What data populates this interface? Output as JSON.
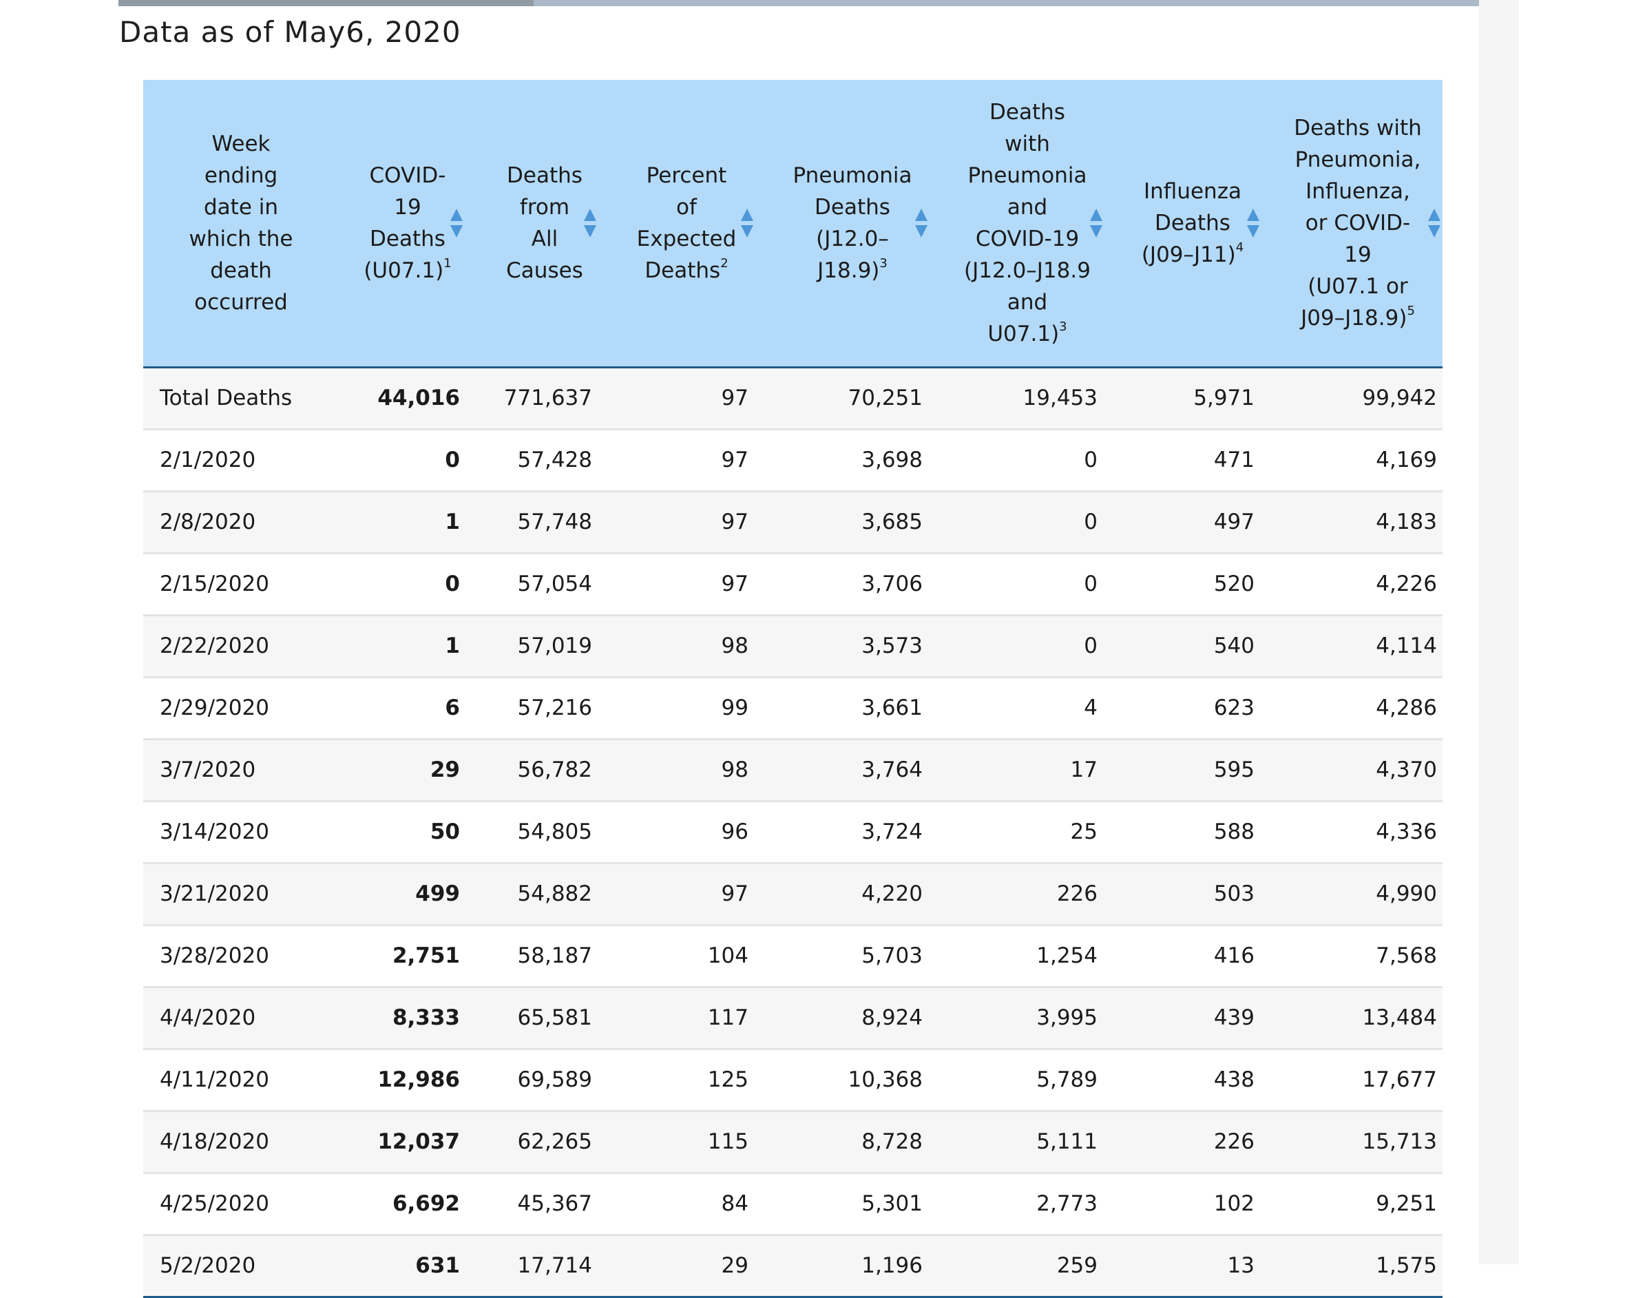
{
  "page": {
    "as_of": "Data as of May6, 2020"
  },
  "table": {
    "headers": [
      {
        "lines": [
          "Week ending",
          "date in",
          "which the",
          "death",
          "occurred"
        ],
        "sup": ""
      },
      {
        "lines": [
          "COVID-",
          "19",
          "Deaths",
          "(U07.1)"
        ],
        "sup": "1"
      },
      {
        "lines": [
          "Deaths",
          "from",
          "All",
          "Causes"
        ],
        "sup": ""
      },
      {
        "lines": [
          "Percent",
          "of",
          "Expected",
          "Deaths"
        ],
        "sup": "2"
      },
      {
        "lines": [
          "Pneumonia",
          "Deaths",
          "(J12.0–",
          "J18.9)"
        ],
        "sup": "3"
      },
      {
        "lines": [
          "Deaths",
          "with",
          "Pneumonia",
          "and",
          "COVID-19",
          "(J12.0–J18.9",
          "and",
          "U07.1)"
        ],
        "sup": "3"
      },
      {
        "lines": [
          "Influenza",
          "Deaths",
          "(J09–J11)"
        ],
        "sup": "4"
      },
      {
        "lines": [
          "Deaths with",
          "Pneumonia,",
          "Influenza,",
          "or COVID-",
          "19",
          "(U07.1 or",
          "J09–J18.9)"
        ],
        "sup": "5"
      }
    ],
    "rows": [
      [
        "Total Deaths",
        "44,016",
        "771,637",
        "97",
        "70,251",
        "19,453",
        "5,971",
        "99,942"
      ],
      [
        "2/1/2020",
        "0",
        "57,428",
        "97",
        "3,698",
        "0",
        "471",
        "4,169"
      ],
      [
        "2/8/2020",
        "1",
        "57,748",
        "97",
        "3,685",
        "0",
        "497",
        "4,183"
      ],
      [
        "2/15/2020",
        "0",
        "57,054",
        "97",
        "3,706",
        "0",
        "520",
        "4,226"
      ],
      [
        "2/22/2020",
        "1",
        "57,019",
        "98",
        "3,573",
        "0",
        "540",
        "4,114"
      ],
      [
        "2/29/2020",
        "6",
        "57,216",
        "99",
        "3,661",
        "4",
        "623",
        "4,286"
      ],
      [
        "3/7/2020",
        "29",
        "56,782",
        "98",
        "3,764",
        "17",
        "595",
        "4,370"
      ],
      [
        "3/14/2020",
        "50",
        "54,805",
        "96",
        "3,724",
        "25",
        "588",
        "4,336"
      ],
      [
        "3/21/2020",
        "499",
        "54,882",
        "97",
        "4,220",
        "226",
        "503",
        "4,990"
      ],
      [
        "3/28/2020",
        "2,751",
        "58,187",
        "104",
        "5,703",
        "1,254",
        "416",
        "7,568"
      ],
      [
        "4/4/2020",
        "8,333",
        "65,581",
        "117",
        "8,924",
        "3,995",
        "439",
        "13,484"
      ],
      [
        "4/11/2020",
        "12,986",
        "69,589",
        "125",
        "10,368",
        "5,789",
        "438",
        "17,677"
      ],
      [
        "4/18/2020",
        "12,037",
        "62,265",
        "115",
        "8,728",
        "5,111",
        "226",
        "15,713"
      ],
      [
        "4/25/2020",
        "6,692",
        "45,367",
        "84",
        "5,301",
        "2,773",
        "102",
        "9,251"
      ],
      [
        "5/2/2020",
        "631",
        "17,714",
        "29",
        "1,196",
        "259",
        "13",
        "1,575"
      ]
    ]
  },
  "colors": {
    "header_bg": "#b3daf8",
    "sort_icon": "#4d97d9",
    "rule": "#1f5a8a"
  }
}
